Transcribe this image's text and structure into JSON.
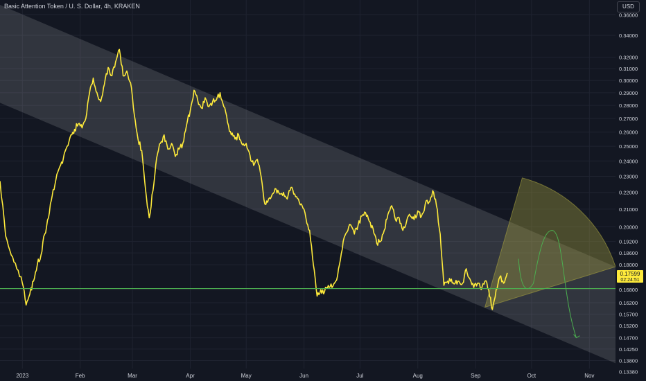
{
  "header": {
    "title": "Basic Attention Token / U. S. Dollar, 4h, KRAKEN",
    "currency": "USD"
  },
  "price_badge": {
    "price": "0.17599",
    "countdown": "02:24:51"
  },
  "colors": {
    "background": "#131722",
    "price_line": "#ffeb3b",
    "support_line": "#4caf50",
    "channel_fill": "#ffffff",
    "axis_text": "#d1d4dc",
    "projection": "#a5a040"
  },
  "chart_data": {
    "type": "line",
    "title": "Basic Attention Token / U. S. Dollar, 4h, KRAKEN",
    "xlabel": "",
    "ylabel": "",
    "y_scale": "log",
    "ylim": [
      0.135,
      0.375
    ],
    "xlim": [
      "2022-12-20",
      "2023-11-15"
    ],
    "grid": true,
    "x_ticks": [
      {
        "label": "2023",
        "date": "2023-01-01"
      },
      {
        "label": "Feb",
        "date": "2023-02-01"
      },
      {
        "label": "Mar",
        "date": "2023-03-01"
      },
      {
        "label": "Apr",
        "date": "2023-04-01"
      },
      {
        "label": "May",
        "date": "2023-05-01"
      },
      {
        "label": "Jun",
        "date": "2023-06-01"
      },
      {
        "label": "Jul",
        "date": "2023-07-01"
      },
      {
        "label": "Aug",
        "date": "2023-08-01"
      },
      {
        "label": "Sep",
        "date": "2023-09-01"
      },
      {
        "label": "Oct",
        "date": "2023-10-01"
      },
      {
        "label": "Nov",
        "date": "2023-11-01"
      }
    ],
    "y_ticks": [
      "0.36000",
      "0.34000",
      "0.32000",
      "0.31000",
      "0.30000",
      "0.29000",
      "0.28000",
      "0.27000",
      "0.26000",
      "0.25000",
      "0.24000",
      "0.23000",
      "0.22000",
      "0.21000",
      "0.20000",
      "0.19200",
      "0.18600",
      "0.18000",
      "0.16800",
      "0.16200",
      "0.15700",
      "0.15200",
      "0.14700",
      "0.14250",
      "0.13800",
      "0.13380"
    ],
    "series": [
      {
        "color": "#ffeb3b",
        "points": [
          {
            "x": "2022-12-20",
            "y": 0.227
          },
          {
            "x": "2022-12-23",
            "y": 0.195
          },
          {
            "x": "2022-12-26",
            "y": 0.185
          },
          {
            "x": "2022-12-29",
            "y": 0.178
          },
          {
            "x": "2023-01-01",
            "y": 0.171
          },
          {
            "x": "2023-01-03",
            "y": 0.161
          },
          {
            "x": "2023-01-05",
            "y": 0.166
          },
          {
            "x": "2023-01-07",
            "y": 0.172
          },
          {
            "x": "2023-01-09",
            "y": 0.18
          },
          {
            "x": "2023-01-11",
            "y": 0.185
          },
          {
            "x": "2023-01-13",
            "y": 0.196
          },
          {
            "x": "2023-01-15",
            "y": 0.205
          },
          {
            "x": "2023-01-17",
            "y": 0.218
          },
          {
            "x": "2023-01-19",
            "y": 0.228
          },
          {
            "x": "2023-01-21",
            "y": 0.236
          },
          {
            "x": "2023-01-23",
            "y": 0.242
          },
          {
            "x": "2023-01-25",
            "y": 0.25
          },
          {
            "x": "2023-01-27",
            "y": 0.258
          },
          {
            "x": "2023-01-29",
            "y": 0.262
          },
          {
            "x": "2023-01-31",
            "y": 0.266
          },
          {
            "x": "2023-02-02",
            "y": 0.263
          },
          {
            "x": "2023-02-04",
            "y": 0.27
          },
          {
            "x": "2023-02-06",
            "y": 0.29
          },
          {
            "x": "2023-02-08",
            "y": 0.302
          },
          {
            "x": "2023-02-10",
            "y": 0.29
          },
          {
            "x": "2023-02-12",
            "y": 0.283
          },
          {
            "x": "2023-02-14",
            "y": 0.297
          },
          {
            "x": "2023-02-16",
            "y": 0.311
          },
          {
            "x": "2023-02-18",
            "y": 0.304
          },
          {
            "x": "2023-02-20",
            "y": 0.316
          },
          {
            "x": "2023-02-22",
            "y": 0.327
          },
          {
            "x": "2023-02-24",
            "y": 0.304
          },
          {
            "x": "2023-02-26",
            "y": 0.308
          },
          {
            "x": "2023-02-28",
            "y": 0.298
          },
          {
            "x": "2023-03-02",
            "y": 0.273
          },
          {
            "x": "2023-03-04",
            "y": 0.255
          },
          {
            "x": "2023-03-06",
            "y": 0.247
          },
          {
            "x": "2023-03-08",
            "y": 0.222
          },
          {
            "x": "2023-03-10",
            "y": 0.205
          },
          {
            "x": "2023-03-12",
            "y": 0.221
          },
          {
            "x": "2023-03-14",
            "y": 0.242
          },
          {
            "x": "2023-03-16",
            "y": 0.252
          },
          {
            "x": "2023-03-18",
            "y": 0.258
          },
          {
            "x": "2023-03-20",
            "y": 0.248
          },
          {
            "x": "2023-03-22",
            "y": 0.252
          },
          {
            "x": "2023-03-24",
            "y": 0.243
          },
          {
            "x": "2023-03-26",
            "y": 0.248
          },
          {
            "x": "2023-03-28",
            "y": 0.252
          },
          {
            "x": "2023-03-30",
            "y": 0.265
          },
          {
            "x": "2023-04-01",
            "y": 0.276
          },
          {
            "x": "2023-04-03",
            "y": 0.292
          },
          {
            "x": "2023-04-05",
            "y": 0.284
          },
          {
            "x": "2023-04-07",
            "y": 0.278
          },
          {
            "x": "2023-04-09",
            "y": 0.286
          },
          {
            "x": "2023-04-11",
            "y": 0.279
          },
          {
            "x": "2023-04-13",
            "y": 0.283
          },
          {
            "x": "2023-04-15",
            "y": 0.284
          },
          {
            "x": "2023-04-17",
            "y": 0.29
          },
          {
            "x": "2023-04-19",
            "y": 0.279
          },
          {
            "x": "2023-04-21",
            "y": 0.267
          },
          {
            "x": "2023-04-23",
            "y": 0.258
          },
          {
            "x": "2023-04-25",
            "y": 0.255
          },
          {
            "x": "2023-04-27",
            "y": 0.258
          },
          {
            "x": "2023-04-29",
            "y": 0.251
          },
          {
            "x": "2023-05-01",
            "y": 0.252
          },
          {
            "x": "2023-05-03",
            "y": 0.244
          },
          {
            "x": "2023-05-05",
            "y": 0.237
          },
          {
            "x": "2023-05-07",
            "y": 0.241
          },
          {
            "x": "2023-05-09",
            "y": 0.23
          },
          {
            "x": "2023-05-11",
            "y": 0.213
          },
          {
            "x": "2023-05-13",
            "y": 0.216
          },
          {
            "x": "2023-05-15",
            "y": 0.219
          },
          {
            "x": "2023-05-17",
            "y": 0.222
          },
          {
            "x": "2023-05-19",
            "y": 0.219
          },
          {
            "x": "2023-05-21",
            "y": 0.22
          },
          {
            "x": "2023-05-23",
            "y": 0.216
          },
          {
            "x": "2023-05-25",
            "y": 0.223
          },
          {
            "x": "2023-05-27",
            "y": 0.219
          },
          {
            "x": "2023-05-29",
            "y": 0.216
          },
          {
            "x": "2023-05-31",
            "y": 0.212
          },
          {
            "x": "2023-06-02",
            "y": 0.205
          },
          {
            "x": "2023-06-04",
            "y": 0.198
          },
          {
            "x": "2023-06-06",
            "y": 0.18
          },
          {
            "x": "2023-06-08",
            "y": 0.165
          },
          {
            "x": "2023-06-10",
            "y": 0.168
          },
          {
            "x": "2023-06-12",
            "y": 0.167
          },
          {
            "x": "2023-06-14",
            "y": 0.17
          },
          {
            "x": "2023-06-16",
            "y": 0.169
          },
          {
            "x": "2023-06-18",
            "y": 0.172
          },
          {
            "x": "2023-06-20",
            "y": 0.18
          },
          {
            "x": "2023-06-22",
            "y": 0.192
          },
          {
            "x": "2023-06-24",
            "y": 0.197
          },
          {
            "x": "2023-06-26",
            "y": 0.201
          },
          {
            "x": "2023-06-28",
            "y": 0.196
          },
          {
            "x": "2023-06-30",
            "y": 0.201
          },
          {
            "x": "2023-07-02",
            "y": 0.206
          },
          {
            "x": "2023-07-04",
            "y": 0.208
          },
          {
            "x": "2023-07-06",
            "y": 0.203
          },
          {
            "x": "2023-07-08",
            "y": 0.199
          },
          {
            "x": "2023-07-10",
            "y": 0.191
          },
          {
            "x": "2023-07-12",
            "y": 0.192
          },
          {
            "x": "2023-07-14",
            "y": 0.198
          },
          {
            "x": "2023-07-16",
            "y": 0.207
          },
          {
            "x": "2023-07-18",
            "y": 0.212
          },
          {
            "x": "2023-07-20",
            "y": 0.204
          },
          {
            "x": "2023-07-22",
            "y": 0.205
          },
          {
            "x": "2023-07-24",
            "y": 0.198
          },
          {
            "x": "2023-07-26",
            "y": 0.203
          },
          {
            "x": "2023-07-28",
            "y": 0.206
          },
          {
            "x": "2023-07-30",
            "y": 0.204
          },
          {
            "x": "2023-08-01",
            "y": 0.209
          },
          {
            "x": "2023-08-03",
            "y": 0.206
          },
          {
            "x": "2023-08-05",
            "y": 0.213
          },
          {
            "x": "2023-08-07",
            "y": 0.214
          },
          {
            "x": "2023-08-09",
            "y": 0.221
          },
          {
            "x": "2023-08-11",
            "y": 0.212
          },
          {
            "x": "2023-08-13",
            "y": 0.196
          },
          {
            "x": "2023-08-15",
            "y": 0.17
          },
          {
            "x": "2023-08-17",
            "y": 0.172
          },
          {
            "x": "2023-08-19",
            "y": 0.173
          },
          {
            "x": "2023-08-21",
            "y": 0.171
          },
          {
            "x": "2023-08-23",
            "y": 0.172
          },
          {
            "x": "2023-08-25",
            "y": 0.171
          },
          {
            "x": "2023-08-27",
            "y": 0.178
          },
          {
            "x": "2023-08-29",
            "y": 0.173
          },
          {
            "x": "2023-08-31",
            "y": 0.169
          },
          {
            "x": "2023-09-02",
            "y": 0.171
          },
          {
            "x": "2023-09-04",
            "y": 0.168
          },
          {
            "x": "2023-09-06",
            "y": 0.172
          },
          {
            "x": "2023-09-08",
            "y": 0.168
          },
          {
            "x": "2023-09-10",
            "y": 0.159
          },
          {
            "x": "2023-09-12",
            "y": 0.168
          },
          {
            "x": "2023-09-14",
            "y": 0.174
          },
          {
            "x": "2023-09-16",
            "y": 0.171
          },
          {
            "x": "2023-09-18",
            "y": 0.176
          }
        ]
      }
    ],
    "horizontal_lines": [
      {
        "y": 0.1685,
        "color": "#4caf50"
      }
    ],
    "annotations": [
      {
        "type": "parallel_channel",
        "upper": [
          {
            "x": "2022-12-20",
            "y": 0.37
          },
          {
            "x": "2023-11-15",
            "y": 0.179
          }
        ],
        "lower": [
          {
            "x": "2022-12-20",
            "y": 0.282
          },
          {
            "x": "2023-11-15",
            "y": 0.137
          }
        ]
      },
      {
        "type": "fan_zone",
        "apex": {
          "x": "2023-09-06",
          "y": 0.16
        },
        "from": {
          "x": "2023-09-26",
          "y": 0.229
        },
        "to": {
          "x": "2023-11-15",
          "y": 0.179
        }
      },
      {
        "type": "projection_path",
        "points": [
          {
            "x": "2023-09-24",
            "y": 0.183
          },
          {
            "x": "2023-10-02",
            "y": 0.171
          },
          {
            "x": "2023-10-12",
            "y": 0.198
          },
          {
            "x": "2023-10-25",
            "y": 0.147
          },
          {
            "x": "2023-10-30",
            "y": 0.145
          }
        ]
      }
    ]
  }
}
